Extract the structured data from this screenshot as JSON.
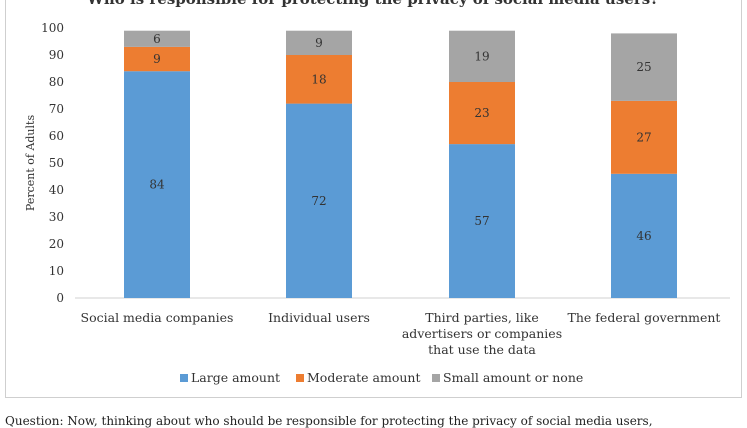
{
  "chart_data": {
    "type": "bar",
    "stacked": true,
    "title": "Who is responsible for protecting the privacy of social media users?",
    "ylabel": "Percent of Adults",
    "xlabel": "",
    "ylim": [
      0,
      100
    ],
    "yticks": [
      0,
      10,
      20,
      30,
      40,
      50,
      60,
      70,
      80,
      90,
      100
    ],
    "grid": false,
    "legend": "bottom",
    "categories": [
      [
        "Social media companies"
      ],
      [
        "Individual users"
      ],
      [
        "Third parties, like",
        "advertisers or companies",
        "that use the data"
      ],
      [
        "The federal government"
      ]
    ],
    "series": [
      {
        "name": "Large amount",
        "color": "#5b9bd5",
        "values": [
          84,
          72,
          57,
          46
        ]
      },
      {
        "name": "Moderate amount",
        "color": "#ed7d31",
        "values": [
          9,
          18,
          23,
          27
        ]
      },
      {
        "name": "Small amount or none",
        "color": "#a5a5a5",
        "values": [
          6,
          9,
          19,
          25
        ]
      }
    ]
  },
  "footnote": "Question: Now, thinking about who should be responsible for protecting the privacy of social media users,"
}
